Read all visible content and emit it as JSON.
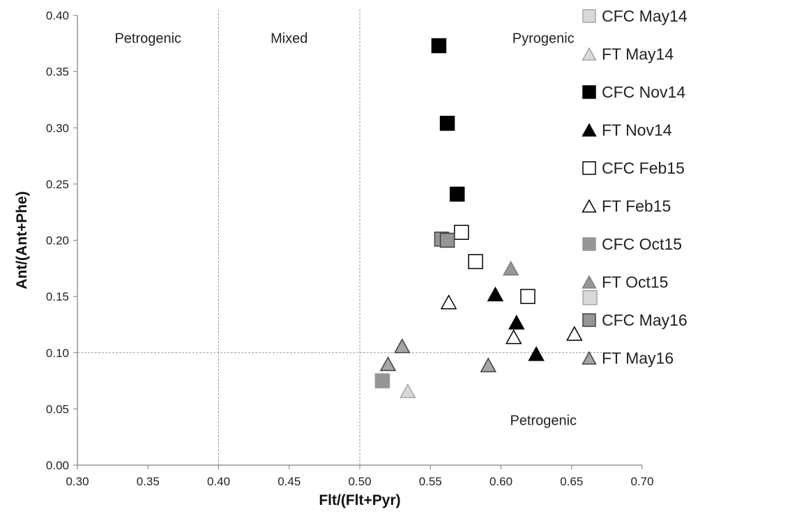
{
  "chart_data": {
    "type": "scatter",
    "title": "",
    "xlabel": "Flt/(Flt+Pyr)",
    "ylabel": "Ant/(Ant+Phe)",
    "xlim": [
      0.3,
      0.7
    ],
    "ylim": [
      0.0,
      0.4
    ],
    "x_ticks": [
      "0.30",
      "0.35",
      "0.40",
      "0.45",
      "0.50",
      "0.55",
      "0.60",
      "0.65",
      "0.70"
    ],
    "y_ticks": [
      "0.00",
      "0.05",
      "0.10",
      "0.15",
      "0.20",
      "0.25",
      "0.30",
      "0.35",
      "0.40"
    ],
    "grid": false,
    "legend_position": "right",
    "reference_lines": {
      "vertical_x": [
        0.4,
        0.5
      ],
      "horizontal_y": [
        0.1
      ]
    },
    "annotations": [
      {
        "text": "Petrogenic",
        "x": 0.35,
        "y": 0.38
      },
      {
        "text": "Mixed",
        "x": 0.45,
        "y": 0.38
      },
      {
        "text": "Pyrogenic",
        "x": 0.63,
        "y": 0.38
      },
      {
        "text": "Petrogenic",
        "x": 0.63,
        "y": 0.04
      }
    ],
    "series": [
      {
        "name": "CFC May14",
        "marker": "square",
        "fill": "#d9d9d9",
        "stroke": "#a6a6a6",
        "points": [
          [
            0.663,
            0.149
          ]
        ]
      },
      {
        "name": "FT May14",
        "marker": "triangle",
        "fill": "#d9d9d9",
        "stroke": "#a6a6a6",
        "points": [
          [
            0.534,
            0.066
          ]
        ]
      },
      {
        "name": "CFC Nov14",
        "marker": "square",
        "fill": "#000000",
        "stroke": "#000000",
        "points": [
          [
            0.556,
            0.373
          ],
          [
            0.562,
            0.304
          ],
          [
            0.569,
            0.241
          ]
        ]
      },
      {
        "name": "FT Nov14",
        "marker": "triangle",
        "fill": "#000000",
        "stroke": "#000000",
        "points": [
          [
            0.596,
            0.152
          ],
          [
            0.611,
            0.127
          ],
          [
            0.625,
            0.099
          ]
        ]
      },
      {
        "name": "CFC Feb15",
        "marker": "square",
        "fill": "#ffffff",
        "stroke": "#000000",
        "points": [
          [
            0.572,
            0.207
          ],
          [
            0.582,
            0.181
          ],
          [
            0.619,
            0.15
          ]
        ]
      },
      {
        "name": "FT Feb15",
        "marker": "triangle",
        "fill": "#ffffff",
        "stroke": "#000000",
        "points": [
          [
            0.563,
            0.145
          ],
          [
            0.609,
            0.114
          ],
          [
            0.652,
            0.117
          ]
        ]
      },
      {
        "name": "CFC Oct15",
        "marker": "square",
        "fill": "#969696",
        "stroke": "#969696",
        "points": [
          [
            0.516,
            0.075
          ]
        ]
      },
      {
        "name": "FT Oct15",
        "marker": "triangle",
        "fill": "#969696",
        "stroke": "#7f7f7f",
        "points": [
          [
            0.607,
            0.175
          ]
        ]
      },
      {
        "name": "CFC May16",
        "marker": "square",
        "fill": "#969696",
        "stroke": "#404040",
        "points": [
          [
            0.558,
            0.201
          ],
          [
            0.562,
            0.2
          ]
        ]
      },
      {
        "name": "FT May16",
        "marker": "triangle",
        "fill": "#a6a6a6",
        "stroke": "#404040",
        "points": [
          [
            0.53,
            0.106
          ],
          [
            0.52,
            0.09
          ],
          [
            0.591,
            0.089
          ]
        ]
      }
    ]
  }
}
